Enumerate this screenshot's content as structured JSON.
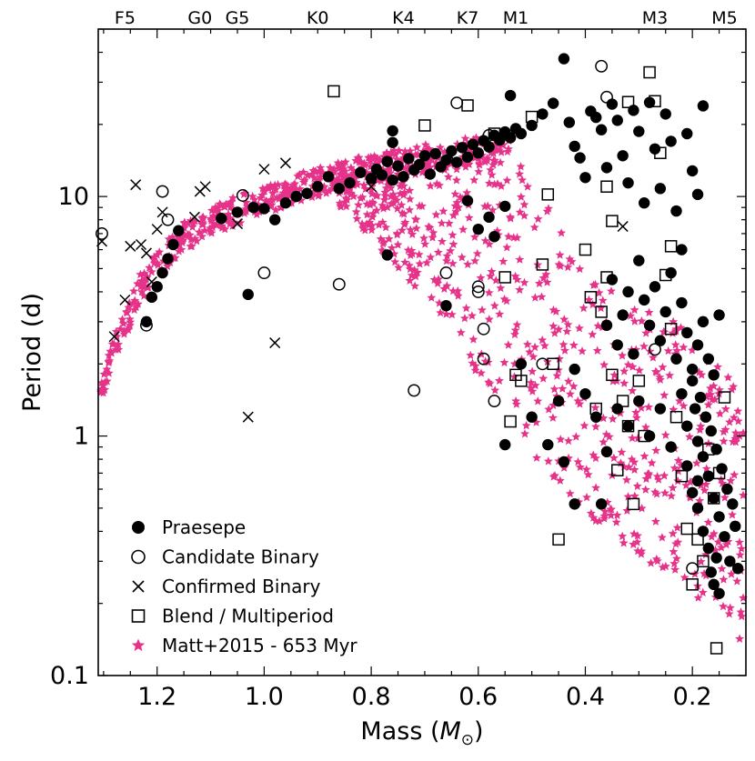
{
  "chart_data": {
    "type": "scatter",
    "xlabel": "Mass (",
    "xlabel_symbol": "M",
    "xlabel_sub": "⊙",
    "xlabel_close": ")",
    "ylabel": "Period (d)",
    "xlim": [
      1.31,
      0.1
    ],
    "ylim": [
      0.1,
      50
    ],
    "yscale": "log",
    "x_tick_labels": [
      "1.2",
      "1.0",
      "0.8",
      "0.6",
      "0.4",
      "0.2"
    ],
    "x_ticks": [
      1.2,
      1.0,
      0.8,
      0.6,
      0.4,
      0.2
    ],
    "y_tick_labels": [
      "0.1",
      "1",
      "10"
    ],
    "y_ticks": [
      0.1,
      1,
      10
    ],
    "spectral_types": [
      {
        "label": "F5",
        "mass": 1.26
      },
      {
        "label": "G0",
        "mass": 1.12
      },
      {
        "label": "G5",
        "mass": 1.05
      },
      {
        "label": "K0",
        "mass": 0.9
      },
      {
        "label": "K4",
        "mass": 0.74
      },
      {
        "label": "K7",
        "mass": 0.62
      },
      {
        "label": "M1",
        "mass": 0.53
      },
      {
        "label": "M3",
        "mass": 0.27
      },
      {
        "label": "M5",
        "mass": 0.14
      }
    ],
    "legend": {
      "position": "bottom-left",
      "entries": [
        {
          "label": "Praesepe",
          "marker": "filled-circle"
        },
        {
          "label": "Candidate Binary",
          "marker": "open-circle"
        },
        {
          "label": "Confirmed Binary",
          "marker": "x"
        },
        {
          "label": "Blend / Multiperiod",
          "marker": "open-square"
        },
        {
          "label": "Matt+2015 - 653 Myr",
          "marker": "star"
        }
      ]
    },
    "colors": {
      "model": "#e6338a",
      "data": "#000000"
    },
    "series": [
      {
        "name": "Praesepe",
        "points": [
          [
            1.22,
            3.0
          ],
          [
            1.21,
            3.8
          ],
          [
            1.2,
            4.2
          ],
          [
            1.19,
            4.8
          ],
          [
            1.18,
            5.5
          ],
          [
            1.17,
            6.3
          ],
          [
            1.16,
            7.2
          ],
          [
            1.08,
            8.1
          ],
          [
            1.05,
            8.6
          ],
          [
            1.03,
            3.9
          ],
          [
            1.02,
            9.0
          ],
          [
            1.0,
            8.9
          ],
          [
            0.98,
            8.0
          ],
          [
            0.96,
            9.4
          ],
          [
            0.94,
            10.0
          ],
          [
            0.92,
            10.3
          ],
          [
            0.9,
            11.0
          ],
          [
            0.88,
            12.1
          ],
          [
            0.86,
            10.8
          ],
          [
            0.84,
            11.4
          ],
          [
            0.82,
            12.6
          ],
          [
            0.8,
            11.9
          ],
          [
            0.79,
            13.0
          ],
          [
            0.78,
            12.3
          ],
          [
            0.77,
            14.0
          ],
          [
            0.76,
            11.7
          ],
          [
            0.75,
            13.4
          ],
          [
            0.74,
            12.1
          ],
          [
            0.73,
            14.4
          ],
          [
            0.72,
            12.9
          ],
          [
            0.71,
            13.6
          ],
          [
            0.7,
            14.8
          ],
          [
            0.69,
            12.4
          ],
          [
            0.68,
            15.1
          ],
          [
            0.67,
            13.3
          ],
          [
            0.66,
            14.2
          ],
          [
            0.65,
            15.5
          ],
          [
            0.64,
            13.9
          ],
          [
            0.63,
            16.0
          ],
          [
            0.62,
            14.6
          ],
          [
            0.61,
            16.5
          ],
          [
            0.6,
            15.2
          ],
          [
            0.59,
            17.1
          ],
          [
            0.58,
            16.1
          ],
          [
            0.57,
            18.0
          ],
          [
            0.56,
            17.2
          ],
          [
            0.55,
            18.6
          ],
          [
            0.54,
            17.6
          ],
          [
            0.53,
            19.2
          ],
          [
            0.52,
            18.3
          ],
          [
            0.76,
            16.8
          ],
          [
            0.76,
            18.8
          ],
          [
            0.77,
            5.7
          ],
          [
            0.66,
            3.5
          ],
          [
            0.62,
            9.6
          ],
          [
            0.6,
            7.3
          ],
          [
            0.58,
            8.2
          ],
          [
            0.57,
            6.8
          ],
          [
            0.55,
            9.1
          ],
          [
            0.52,
            2.0
          ],
          [
            0.55,
            0.92
          ],
          [
            0.54,
            26.4
          ],
          [
            0.5,
            19.8
          ],
          [
            0.48,
            22.1
          ],
          [
            0.46,
            24.5
          ],
          [
            0.44,
            37.6
          ],
          [
            0.43,
            20.4
          ],
          [
            0.42,
            16.2
          ],
          [
            0.41,
            14.5
          ],
          [
            0.4,
            12.0
          ],
          [
            0.39,
            22.7
          ],
          [
            0.38,
            21.4
          ],
          [
            0.37,
            19.0
          ],
          [
            0.36,
            13.2
          ],
          [
            0.35,
            24.3
          ],
          [
            0.34,
            20.8
          ],
          [
            0.33,
            14.8
          ],
          [
            0.32,
            11.4
          ],
          [
            0.31,
            22.9
          ],
          [
            0.3,
            18.7
          ],
          [
            0.29,
            9.4
          ],
          [
            0.28,
            24.7
          ],
          [
            0.27,
            15.8
          ],
          [
            0.26,
            10.8
          ],
          [
            0.25,
            22.1
          ],
          [
            0.24,
            17.0
          ],
          [
            0.23,
            8.7
          ],
          [
            0.22,
            6.0
          ],
          [
            0.21,
            18.3
          ],
          [
            0.2,
            12.8
          ],
          [
            0.19,
            10.2
          ],
          [
            0.18,
            23.9
          ],
          [
            0.36,
            2.9
          ],
          [
            0.35,
            4.5
          ],
          [
            0.34,
            2.4
          ],
          [
            0.33,
            3.2
          ],
          [
            0.32,
            4.0
          ],
          [
            0.31,
            2.2
          ],
          [
            0.3,
            5.4
          ],
          [
            0.29,
            3.7
          ],
          [
            0.28,
            2.9
          ],
          [
            0.27,
            4.2
          ],
          [
            0.26,
            2.5
          ],
          [
            0.25,
            3.3
          ],
          [
            0.24,
            4.8
          ],
          [
            0.23,
            2.1
          ],
          [
            0.22,
            3.6
          ],
          [
            0.21,
            2.7
          ],
          [
            0.2,
            1.9
          ],
          [
            0.19,
            2.4
          ],
          [
            0.18,
            3.0
          ],
          [
            0.17,
            2.1
          ],
          [
            0.16,
            1.8
          ],
          [
            0.15,
            3.2
          ],
          [
            0.42,
            1.9
          ],
          [
            0.4,
            1.5
          ],
          [
            0.38,
            1.2
          ],
          [
            0.36,
            0.86
          ],
          [
            0.34,
            1.3
          ],
          [
            0.32,
            1.1
          ],
          [
            0.3,
            1.4
          ],
          [
            0.28,
            1.0
          ],
          [
            0.26,
            1.3
          ],
          [
            0.24,
            0.9
          ],
          [
            0.22,
            1.5
          ],
          [
            0.21,
            1.1
          ],
          [
            0.2,
            1.7
          ],
          [
            0.195,
            1.3
          ],
          [
            0.19,
            0.95
          ],
          [
            0.185,
            1.45
          ],
          [
            0.18,
            0.82
          ],
          [
            0.175,
            1.2
          ],
          [
            0.17,
            0.68
          ],
          [
            0.165,
            1.05
          ],
          [
            0.16,
            0.55
          ],
          [
            0.155,
            0.88
          ],
          [
            0.15,
            0.46
          ],
          [
            0.145,
            0.73
          ],
          [
            0.14,
            0.38
          ],
          [
            0.135,
            0.6
          ],
          [
            0.13,
            0.3
          ],
          [
            0.125,
            0.52
          ],
          [
            0.12,
            0.42
          ],
          [
            0.115,
            0.28
          ],
          [
            0.2,
            0.58
          ],
          [
            0.19,
            0.5
          ],
          [
            0.18,
            0.4
          ],
          [
            0.17,
            0.34
          ],
          [
            0.165,
            0.27
          ],
          [
            0.16,
            0.24
          ],
          [
            0.155,
            0.31
          ],
          [
            0.15,
            0.22
          ],
          [
            0.21,
            0.75
          ],
          [
            0.19,
            0.65
          ],
          [
            0.44,
            0.78
          ],
          [
            0.42,
            0.52
          ],
          [
            0.47,
            0.92
          ],
          [
            0.5,
            1.2
          ],
          [
            0.45,
            1.4
          ],
          [
            0.37,
            0.52
          ]
        ]
      },
      {
        "name": "Candidate Binary",
        "points": [
          [
            1.31,
            7.0
          ],
          [
            1.22,
            2.9
          ],
          [
            1.19,
            10.5
          ],
          [
            1.18,
            8.0
          ],
          [
            1.04,
            10.1
          ],
          [
            1.0,
            4.8
          ],
          [
            0.86,
            4.3
          ],
          [
            0.72,
            1.55
          ],
          [
            0.66,
            4.8
          ],
          [
            0.64,
            24.6
          ],
          [
            0.6,
            4.2
          ],
          [
            0.6,
            4.0
          ],
          [
            0.59,
            2.8
          ],
          [
            0.59,
            2.1
          ],
          [
            0.58,
            18.0
          ],
          [
            0.57,
            1.4
          ],
          [
            0.48,
            2.0
          ],
          [
            0.37,
            35.0
          ],
          [
            0.36,
            26.0
          ],
          [
            0.27,
            2.3
          ],
          [
            0.2,
            0.28
          ]
        ]
      },
      {
        "name": "Confirmed Binary",
        "points": [
          [
            1.31,
            6.5
          ],
          [
            1.28,
            2.6
          ],
          [
            1.26,
            3.7
          ],
          [
            1.25,
            6.2
          ],
          [
            1.24,
            11.2
          ],
          [
            1.23,
            6.3
          ],
          [
            1.22,
            5.8
          ],
          [
            1.21,
            4.4
          ],
          [
            1.2,
            7.3
          ],
          [
            1.19,
            8.6
          ],
          [
            1.13,
            8.2
          ],
          [
            1.12,
            10.5
          ],
          [
            1.11,
            11.0
          ],
          [
            1.05,
            7.7
          ],
          [
            1.0,
            13.0
          ],
          [
            0.96,
            13.8
          ],
          [
            0.98,
            2.45
          ],
          [
            1.03,
            1.2
          ],
          [
            0.8,
            11.0
          ],
          [
            0.65,
            14.6
          ],
          [
            0.33,
            7.5
          ]
        ]
      },
      {
        "name": "Blend / Multiperiod",
        "points": [
          [
            0.87,
            27.5
          ],
          [
            0.7,
            19.8
          ],
          [
            0.62,
            24.0
          ],
          [
            0.57,
            18.3
          ],
          [
            0.55,
            4.6
          ],
          [
            0.54,
            1.15
          ],
          [
            0.53,
            1.8
          ],
          [
            0.52,
            1.7
          ],
          [
            0.5,
            21.5
          ],
          [
            0.48,
            5.2
          ],
          [
            0.47,
            10.2
          ],
          [
            0.46,
            2.0
          ],
          [
            0.45,
            0.37
          ],
          [
            0.4,
            6.0
          ],
          [
            0.39,
            3.8
          ],
          [
            0.38,
            1.3
          ],
          [
            0.37,
            3.3
          ],
          [
            0.36,
            4.6
          ],
          [
            0.35,
            1.8
          ],
          [
            0.34,
            0.72
          ],
          [
            0.33,
            1.4
          ],
          [
            0.32,
            1.1
          ],
          [
            0.31,
            0.52
          ],
          [
            0.3,
            1.7
          ],
          [
            0.29,
            1.0
          ],
          [
            0.28,
            33.0
          ],
          [
            0.27,
            25.0
          ],
          [
            0.26,
            15.2
          ],
          [
            0.25,
            4.7
          ],
          [
            0.24,
            2.8
          ],
          [
            0.23,
            1.2
          ],
          [
            0.22,
            0.68
          ],
          [
            0.21,
            0.41
          ],
          [
            0.2,
            0.24
          ],
          [
            0.19,
            0.37
          ],
          [
            0.18,
            0.3
          ],
          [
            0.17,
            0.88
          ],
          [
            0.16,
            0.55
          ],
          [
            0.155,
            0.13
          ],
          [
            0.15,
            0.7
          ],
          [
            0.14,
            1.45
          ],
          [
            0.36,
            11.0
          ],
          [
            0.35,
            7.9
          ],
          [
            0.24,
            6.2
          ],
          [
            0.32,
            24.8
          ]
        ]
      }
    ],
    "model_series": {
      "name": "Matt+2015 - 653 Myr",
      "description": "dense band tracing slow-rotator sequence from 1.3 to 0.6 Msun and fanning to short periods at low mass",
      "slow_sequence": [
        [
          1.31,
          1.5
        ],
        [
          1.27,
          2.6
        ],
        [
          1.23,
          4.2
        ],
        [
          1.19,
          5.6
        ],
        [
          1.15,
          6.8
        ],
        [
          1.1,
          7.9
        ],
        [
          1.05,
          8.8
        ],
        [
          1.0,
          9.6
        ],
        [
          0.95,
          10.6
        ],
        [
          0.9,
          11.5
        ],
        [
          0.85,
          12.3
        ],
        [
          0.8,
          13.0
        ],
        [
          0.75,
          13.7
        ],
        [
          0.7,
          14.3
        ],
        [
          0.65,
          14.9
        ],
        [
          0.6,
          15.5
        ],
        [
          0.55,
          15.8
        ]
      ],
      "lower_envelope": [
        [
          0.85,
          9.0
        ],
        [
          0.75,
          5.0
        ],
        [
          0.65,
          2.6
        ],
        [
          0.55,
          1.2
        ],
        [
          0.48,
          0.75
        ],
        [
          0.4,
          0.48
        ],
        [
          0.32,
          0.33
        ],
        [
          0.25,
          0.26
        ],
        [
          0.18,
          0.2
        ],
        [
          0.12,
          0.14
        ]
      ],
      "upper_envelope_low_mass": [
        [
          0.55,
          15.8
        ],
        [
          0.5,
          12.0
        ],
        [
          0.45,
          7.5
        ],
        [
          0.4,
          5.0
        ],
        [
          0.35,
          4.0
        ],
        [
          0.3,
          3.4
        ],
        [
          0.25,
          3.2
        ],
        [
          0.2,
          2.8
        ],
        [
          0.15,
          2.2
        ],
        [
          0.1,
          1.6
        ]
      ]
    }
  }
}
